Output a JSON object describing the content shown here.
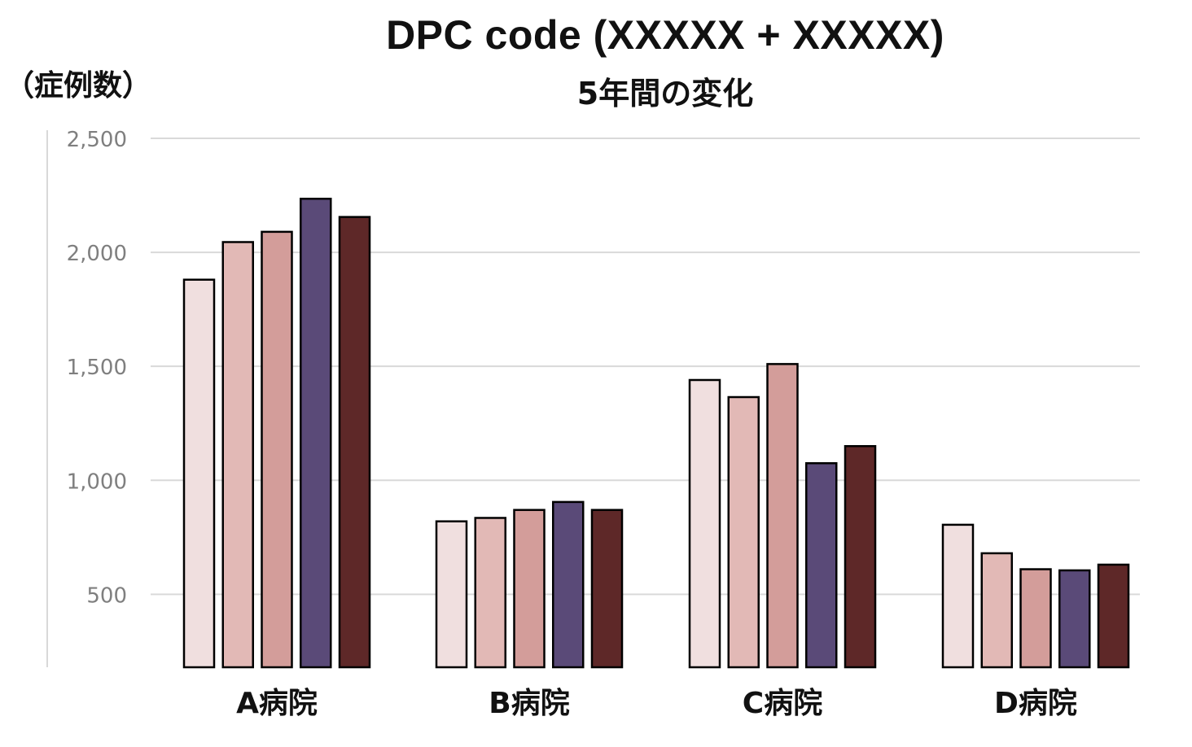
{
  "title": "DPC code (XXXXX + XXXXX)",
  "subtitle": "5年間の変化",
  "y_unit_label": "（症例数）",
  "chart_data": {
    "type": "bar",
    "title": "DPC code (XXXXX + XXXXX)",
    "subtitle": "5年間の変化",
    "xlabel": "",
    "ylabel": "（症例数）",
    "categories": [
      "A病院",
      "B病院",
      "C病院",
      "D病院"
    ],
    "series": [
      {
        "color": "#f0dfdf",
        "values": [
          1880,
          820,
          1440,
          805
        ]
      },
      {
        "color": "#e2b9b6",
        "values": [
          2045,
          835,
          1365,
          680
        ]
      },
      {
        "color": "#d39d9a",
        "values": [
          2090,
          870,
          1510,
          610
        ]
      },
      {
        "color": "#5a4a78",
        "values": [
          2235,
          905,
          1075,
          605
        ]
      },
      {
        "color": "#5e2828",
        "values": [
          2155,
          870,
          1150,
          630
        ]
      }
    ],
    "ylim": [
      180,
      2500
    ],
    "yticks": [
      500,
      1000,
      1500,
      2000,
      2500
    ],
    "ytick_labels": [
      "500",
      "1,000",
      "1,500",
      "2,000",
      "2,500"
    ],
    "grid": true,
    "legend": "none"
  }
}
